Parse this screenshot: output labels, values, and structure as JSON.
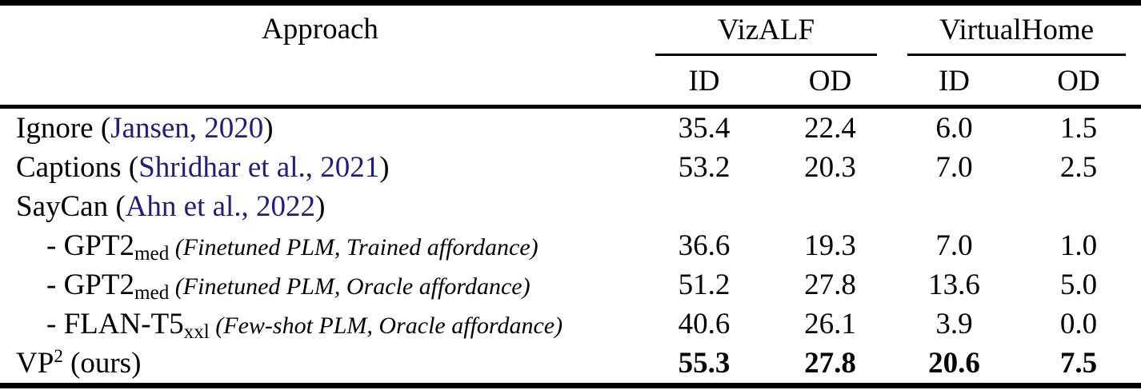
{
  "header": {
    "approach_label": "Approach",
    "groups": [
      {
        "label": "VizALF"
      },
      {
        "label": "VirtualHome"
      }
    ],
    "subheaders": [
      "ID",
      "OD",
      "ID",
      "OD"
    ]
  },
  "rows": [
    {
      "indent": false,
      "bold": false,
      "label": [
        {
          "style": "plain",
          "text": "Ignore ("
        },
        {
          "style": "citation",
          "text": "Jansen, 2020"
        },
        {
          "style": "plain",
          "text": ")"
        }
      ],
      "values": [
        "35.4",
        "22.4",
        "6.0",
        "1.5"
      ]
    },
    {
      "indent": false,
      "bold": false,
      "label": [
        {
          "style": "plain",
          "text": "Captions ("
        },
        {
          "style": "citation",
          "text": "Shridhar et al., 2021"
        },
        {
          "style": "plain",
          "text": ")"
        }
      ],
      "values": [
        "53.2",
        "20.3",
        "7.0",
        "2.5"
      ]
    },
    {
      "indent": false,
      "bold": false,
      "label": [
        {
          "style": "plain",
          "text": "SayCan ("
        },
        {
          "style": "citation",
          "text": "Ahn et al., 2022"
        },
        {
          "style": "plain",
          "text": ")"
        }
      ],
      "values": [
        "",
        "",
        "",
        ""
      ]
    },
    {
      "indent": true,
      "bold": false,
      "label": [
        {
          "style": "plain",
          "text": "- GPT2"
        },
        {
          "style": "sub",
          "text": "med"
        },
        {
          "style": "note",
          "text": " (Finetuned PLM, Trained affordance)"
        }
      ],
      "values": [
        "36.6",
        "19.3",
        "7.0",
        "1.0"
      ]
    },
    {
      "indent": true,
      "bold": false,
      "label": [
        {
          "style": "plain",
          "text": "- GPT2"
        },
        {
          "style": "sub",
          "text": "med"
        },
        {
          "style": "note",
          "text": " (Finetuned PLM, Oracle affordance)"
        }
      ],
      "values": [
        "51.2",
        "27.8",
        "13.6",
        "5.0"
      ]
    },
    {
      "indent": true,
      "bold": false,
      "label": [
        {
          "style": "plain",
          "text": "- FLAN-T5"
        },
        {
          "style": "sub",
          "text": "xxl"
        },
        {
          "style": "note",
          "text": " (Few-shot PLM, Oracle affordance)"
        }
      ],
      "values": [
        "40.6",
        "26.1",
        "3.9",
        "0.0"
      ]
    },
    {
      "indent": false,
      "bold": true,
      "label": [
        {
          "style": "plain",
          "text": "VP"
        },
        {
          "style": "sup",
          "text": "2"
        },
        {
          "style": "plain",
          "text": " (ours)"
        }
      ],
      "values": [
        "55.3",
        "27.8",
        "20.6",
        "7.5"
      ]
    }
  ],
  "colors": {
    "citation": "#1e1e7e"
  }
}
